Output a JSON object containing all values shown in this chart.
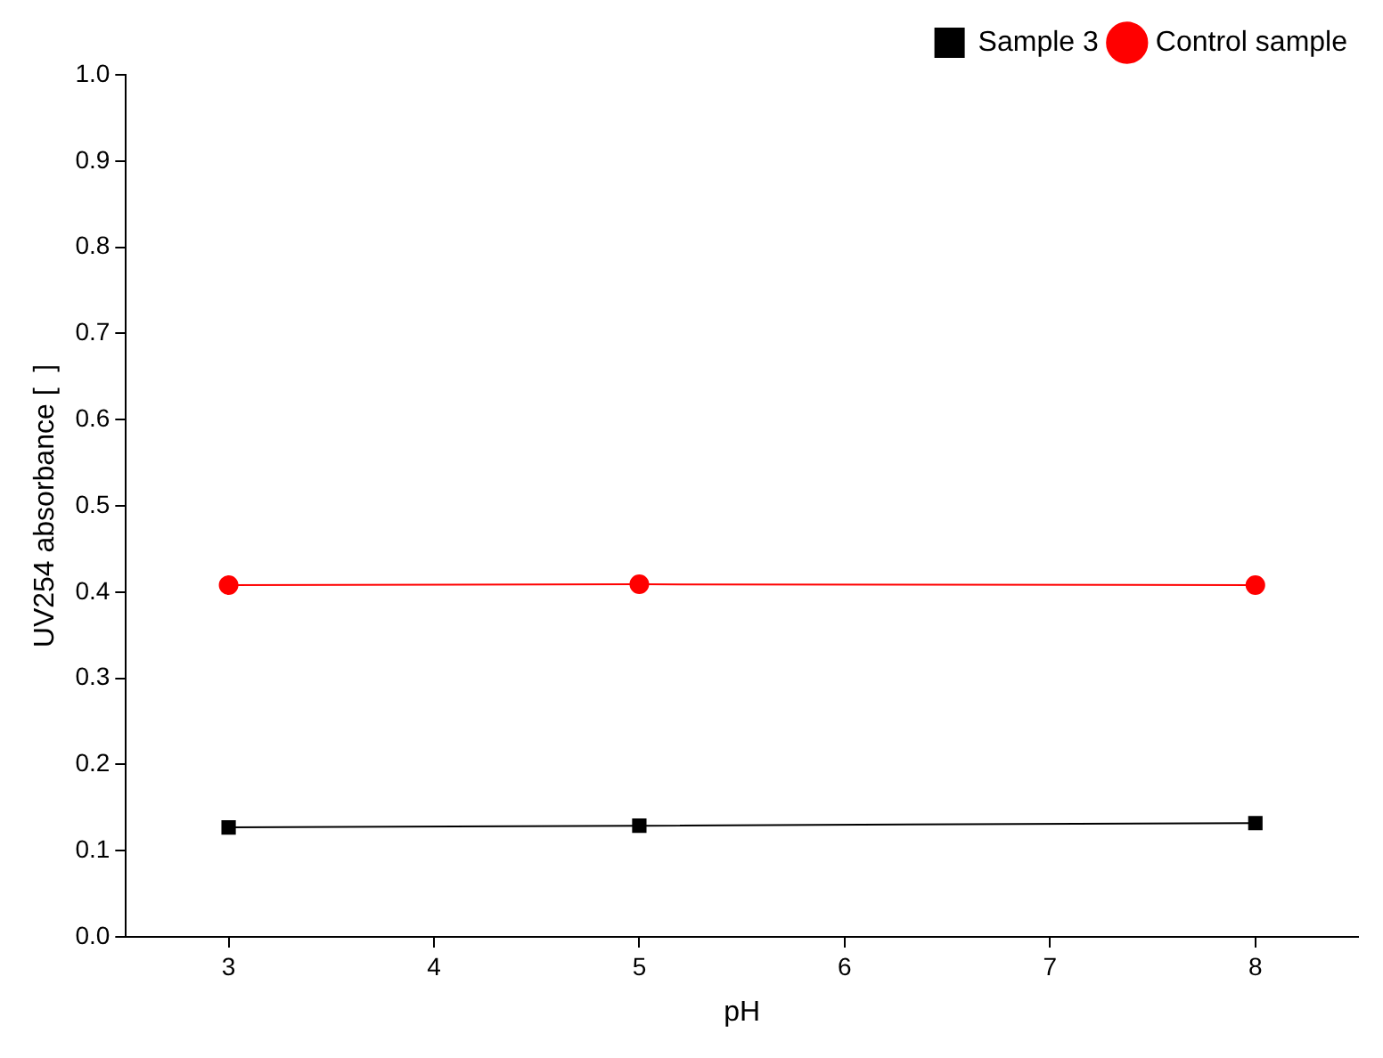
{
  "chart_data": {
    "type": "line",
    "xlabel": "pH",
    "ylabel": "UV254 absorbance [  ]",
    "x": [
      3,
      5,
      8
    ],
    "series": [
      {
        "name": "Sample 3",
        "color": "#000000",
        "values": [
          0.127,
          0.129,
          0.132
        ],
        "marker": "square"
      },
      {
        "name": "Control sample",
        "color": "#ff0000",
        "values": [
          0.408,
          0.409,
          0.408
        ],
        "marker": "circle"
      }
    ],
    "xlim": [
      2.5,
      8.5
    ],
    "xticks": [
      3,
      4,
      5,
      6,
      7,
      8
    ],
    "ylim": [
      0,
      1.0
    ],
    "yticks": [
      {
        "value": 0,
        "label": "0.0"
      },
      {
        "value": 0.1,
        "label": "0.1"
      },
      {
        "value": 0.2,
        "label": "0.2"
      },
      {
        "value": 0.3,
        "label": "0.3"
      },
      {
        "value": 0.4,
        "label": "0.4"
      },
      {
        "value": 0.5,
        "label": "0.5"
      },
      {
        "value": 0.6,
        "label": "0.6"
      },
      {
        "value": 0.7,
        "label": "0.7"
      },
      {
        "value": 0.8,
        "label": "0.8"
      },
      {
        "value": 0.9,
        "label": "0.9"
      },
      {
        "value": 1.0,
        "label": "1.0"
      }
    ],
    "grid": false,
    "legend": "top right",
    "line_style": "solid"
  }
}
